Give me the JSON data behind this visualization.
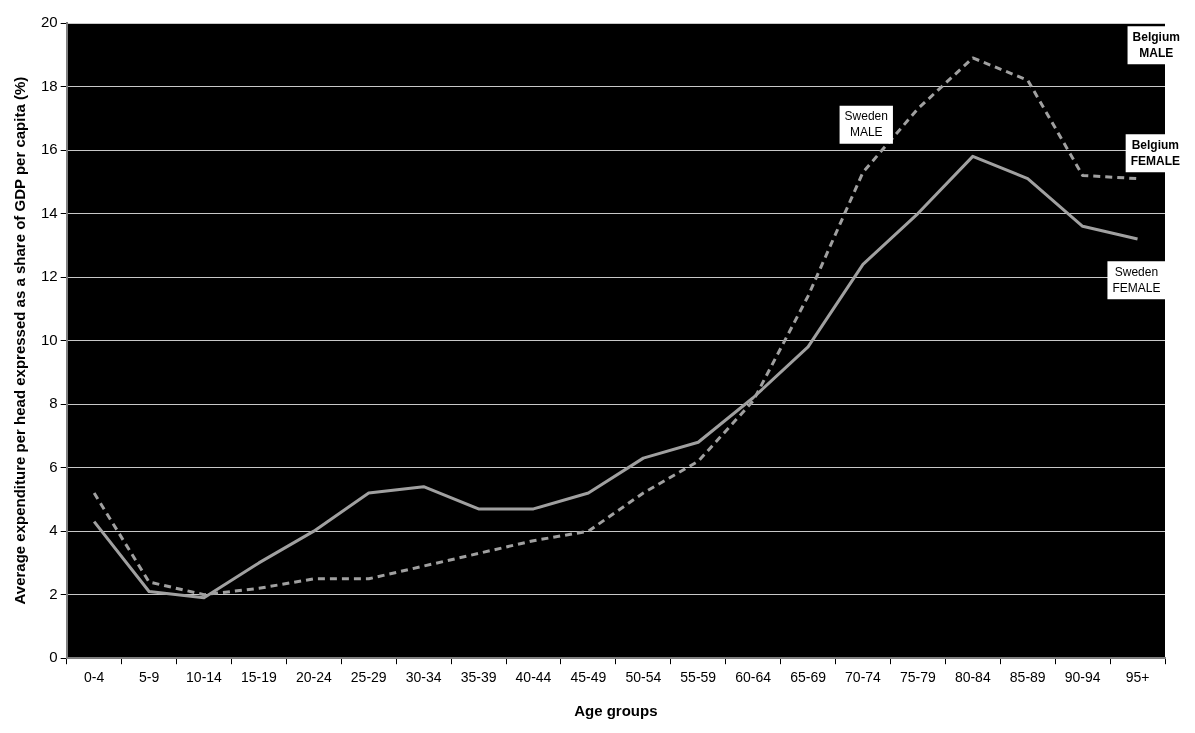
{
  "chart_data": {
    "type": "line",
    "xlabel": "Age groups",
    "ylabel": "Average expenditure per head expressed as a share of GDP per capita (%)",
    "categories": [
      "0-4",
      "5-9",
      "10-14",
      "15-19",
      "20-24",
      "25-29",
      "30-34",
      "35-39",
      "40-44",
      "45-49",
      "50-54",
      "55-59",
      "60-64",
      "65-69",
      "70-74",
      "75-79",
      "80-84",
      "85-89",
      "90-94",
      "95+"
    ],
    "series": [
      {
        "color": "#a0a0a0",
        "line_style": "dashed",
        "values": [
          5.2,
          2.4,
          2.0,
          2.2,
          2.5,
          2.5,
          2.9,
          3.3,
          3.7,
          4.0,
          5.2,
          6.2,
          8.1,
          11.4,
          15.3,
          17.3,
          18.9,
          18.2,
          15.2,
          15.1
        ]
      },
      {
        "color": "#a0a0a0",
        "line_style": "solid",
        "values": [
          4.3,
          2.1,
          1.9,
          3.0,
          4.0,
          5.2,
          5.4,
          4.7,
          4.7,
          5.2,
          6.3,
          6.8,
          8.2,
          9.8,
          12.4,
          14.0,
          15.8,
          15.1,
          13.6,
          13.2
        ]
      }
    ],
    "ylim": [
      0,
      20
    ],
    "yticks": [
      0,
      2,
      4,
      6,
      8,
      10,
      12,
      14,
      16,
      18,
      20
    ],
    "grid": "y",
    "legend": false,
    "marker": "none",
    "annotations": [
      "Sweden MALE",
      "Sweden FEMALE",
      "Belgium MALE",
      "Belgium FEMALE"
    ]
  }
}
